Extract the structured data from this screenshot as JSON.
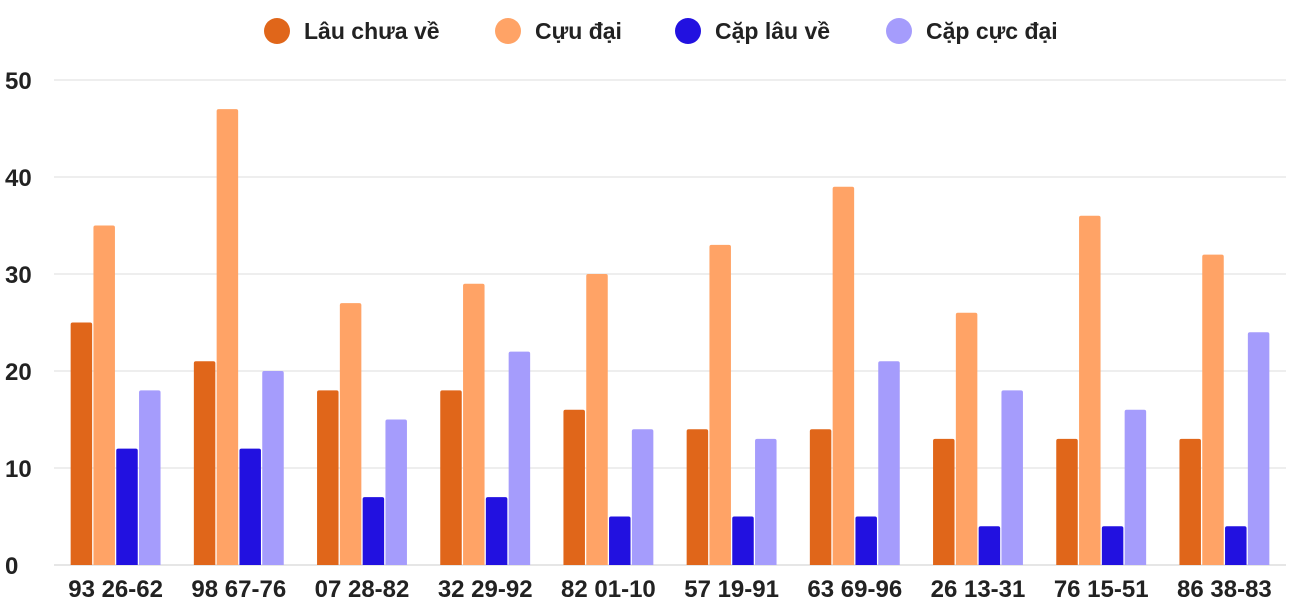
{
  "chart_data": {
    "type": "bar",
    "title": "",
    "xlabel": "",
    "ylabel": "",
    "ylim": [
      0,
      50
    ],
    "yticks": [
      0,
      10,
      20,
      30,
      40,
      50
    ],
    "grid": true,
    "legend_position": "top-center",
    "categories": [
      "93 26-62",
      "98 67-76",
      "07 28-82",
      "32 29-92",
      "82 01-10",
      "57 19-91",
      "63 69-96",
      "26 13-31",
      "76 15-51",
      "86 38-83"
    ],
    "series": [
      {
        "name": "Lâu chưa về",
        "color": "#e0661a",
        "values": [
          25,
          21,
          18,
          18,
          16,
          14,
          14,
          13,
          13,
          13
        ]
      },
      {
        "name": "Cựu đại",
        "color": "#ffa366",
        "values": [
          35,
          47,
          27,
          29,
          30,
          33,
          39,
          26,
          36,
          32
        ]
      },
      {
        "name": "Cặp lâu về",
        "color": "#2211e0",
        "values": [
          12,
          12,
          7,
          7,
          5,
          5,
          5,
          4,
          4,
          4
        ]
      },
      {
        "name": "Cặp cực đại",
        "color": "#a59cfc",
        "values": [
          18,
          20,
          15,
          22,
          14,
          13,
          21,
          18,
          16,
          24
        ]
      }
    ]
  }
}
